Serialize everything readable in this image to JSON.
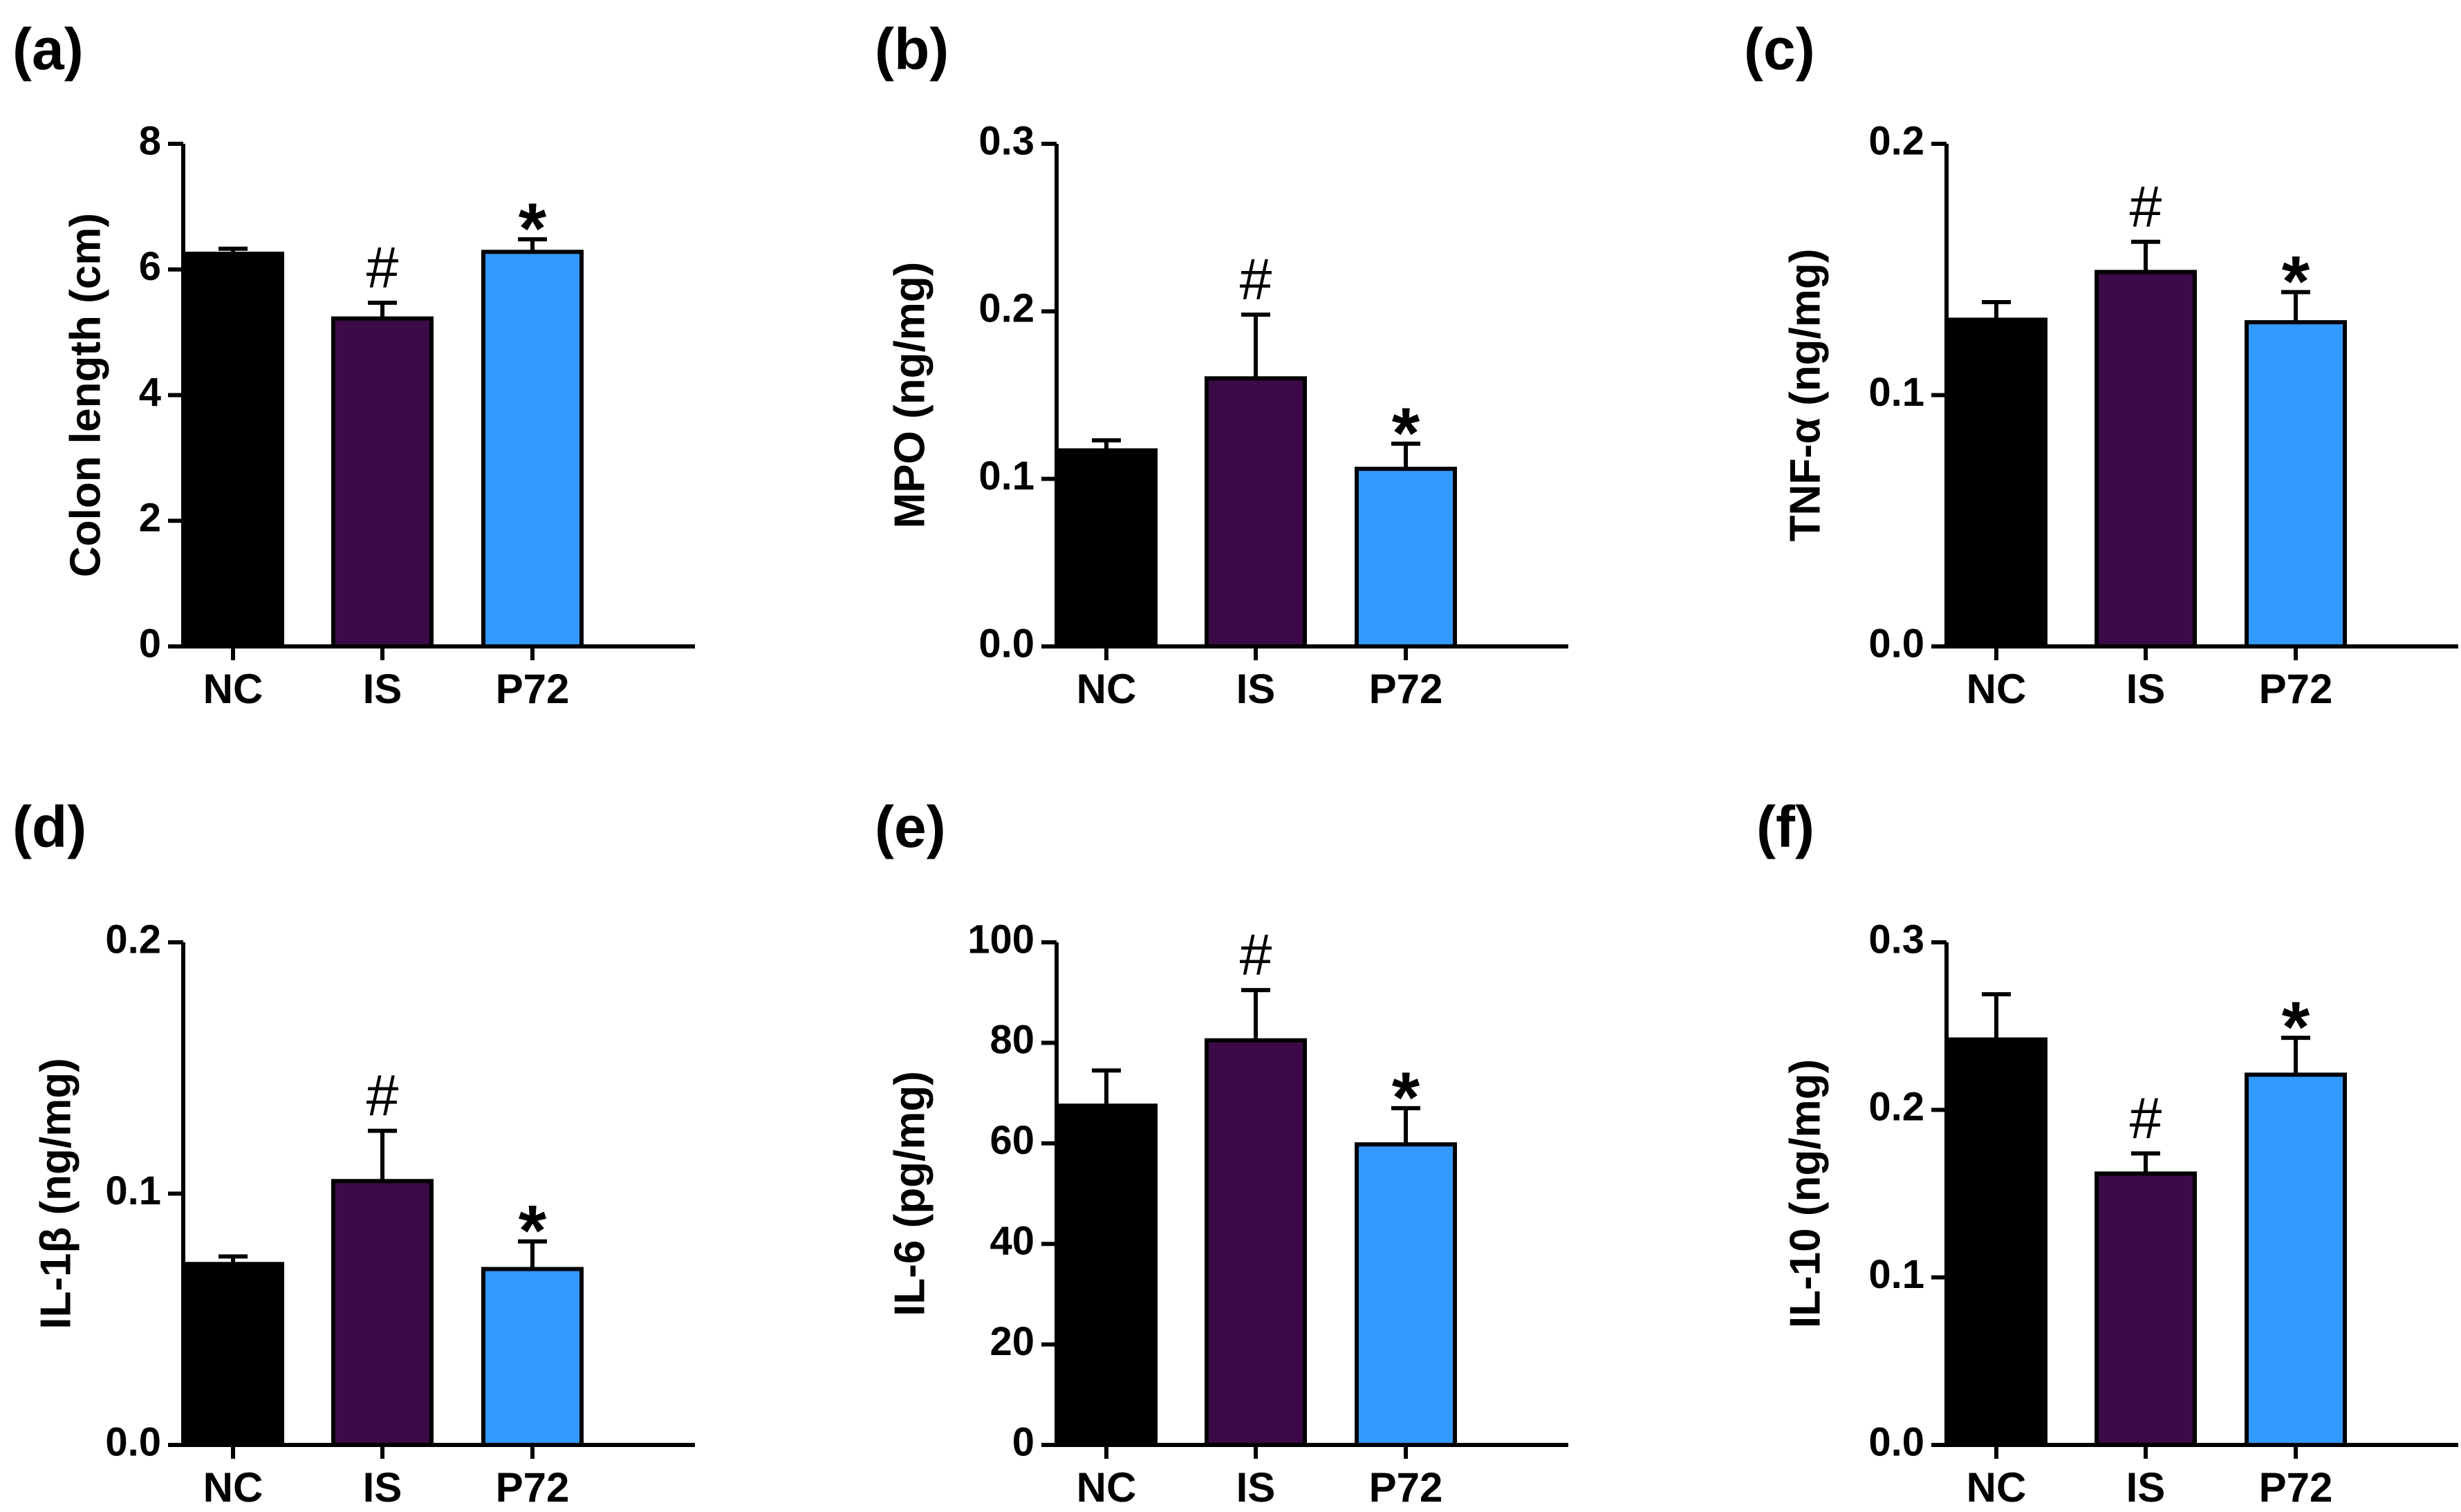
{
  "colors": {
    "NC": "#000000",
    "IS": "#3b0a47",
    "P72": "#3399ff",
    "axis": "#000000"
  },
  "chart_data": [
    {
      "type": "bar",
      "panel": "(a)",
      "ylabel": "Colon length (cm)",
      "categories": [
        "NC",
        "IS",
        "P72"
      ],
      "values": [
        6.25,
        5.22,
        6.28
      ],
      "errors": [
        0.08,
        0.25,
        0.2
      ],
      "ylim": [
        0,
        8
      ],
      "yticks": [
        0,
        2,
        4,
        6,
        8
      ],
      "ytick_labels": [
        "0",
        "2",
        "4",
        "6",
        "8"
      ],
      "annotations": [
        "",
        "#",
        "*"
      ]
    },
    {
      "type": "bar",
      "panel": "(b)",
      "ylabel": "MPO (ng/mg)",
      "categories": [
        "NC",
        "IS",
        "P72"
      ],
      "values": [
        0.117,
        0.16,
        0.106
      ],
      "errors": [
        0.006,
        0.038,
        0.015
      ],
      "ylim": [
        0,
        0.3
      ],
      "yticks": [
        0,
        0.1,
        0.2,
        0.3
      ],
      "ytick_labels": [
        "0.0",
        "0.1",
        "0.2",
        "0.3"
      ],
      "annotations": [
        "",
        "#",
        "*"
      ]
    },
    {
      "type": "bar",
      "panel": "(c)",
      "ylabel": "TNF-α (ng/mg)",
      "categories": [
        "NC",
        "IS",
        "P72"
      ],
      "values": [
        0.13,
        0.149,
        0.129
      ],
      "errors": [
        0.007,
        0.012,
        0.012
      ],
      "ylim": [
        0,
        0.2
      ],
      "yticks": [
        0,
        0.1,
        0.2
      ],
      "ytick_labels": [
        "0.0",
        "0.1",
        "0.2"
      ],
      "annotations": [
        "",
        "#",
        "*"
      ]
    },
    {
      "type": "bar",
      "panel": "(d)",
      "ylabel": "IL-1β (ng/mg)",
      "categories": [
        "NC",
        "IS",
        "P72"
      ],
      "values": [
        0.072,
        0.105,
        0.07
      ],
      "errors": [
        0.003,
        0.02,
        0.011
      ],
      "ylim": [
        0,
        0.2
      ],
      "yticks": [
        0,
        0.1,
        0.2
      ],
      "ytick_labels": [
        "0.0",
        "0.1",
        "0.2"
      ],
      "annotations": [
        "",
        "#",
        "*"
      ]
    },
    {
      "type": "bar",
      "panel": "(e)",
      "ylabel": "IL-6 (pg/mg)",
      "categories": [
        "NC",
        "IS",
        "P72"
      ],
      "values": [
        67.5,
        80.5,
        59.8
      ],
      "errors": [
        7,
        10,
        7.2
      ],
      "ylim": [
        0,
        100
      ],
      "yticks": [
        0,
        20,
        40,
        60,
        80,
        100
      ],
      "ytick_labels": [
        "0",
        "20",
        "40",
        "60",
        "80",
        "100"
      ],
      "annotations": [
        "",
        "#",
        "*"
      ]
    },
    {
      "type": "bar",
      "panel": "(f)",
      "ylabel": "IL-10 (ng/mg)",
      "categories": [
        "NC",
        "IS",
        "P72"
      ],
      "values": [
        0.242,
        0.162,
        0.221
      ],
      "errors": [
        0.027,
        0.012,
        0.022
      ],
      "ylim": [
        0,
        0.3
      ],
      "yticks": [
        0,
        0.1,
        0.2,
        0.3
      ],
      "ytick_labels": [
        "0.0",
        "0.1",
        "0.2",
        "0.3"
      ],
      "annotations": [
        "",
        "#",
        "*"
      ]
    }
  ]
}
